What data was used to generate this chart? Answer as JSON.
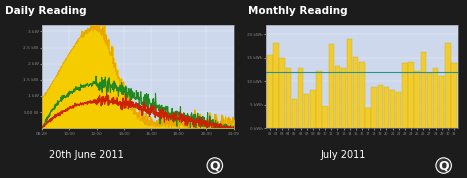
{
  "bg_color": "#1c1c1c",
  "chart_bg": "#cdd8ec",
  "title_daily": "Daily Reading",
  "title_monthly": "Monthly Reading",
  "subtitle_daily": "20th June 2011",
  "subtitle_monthly": "July 2011",
  "daily_yticks": [
    "500 W",
    "1 kW",
    "1.5 kW",
    "2 kW",
    "2.5 kW",
    "3 kW"
  ],
  "daily_ytick_vals": [
    0.5,
    1.0,
    1.5,
    2.0,
    2.5,
    3.0
  ],
  "daily_xticks": [
    "08:28",
    "10:00",
    "12:00",
    "14:00",
    "16:00",
    "18:00",
    "20:00",
    "24:09"
  ],
  "monthly_yticks": [
    "0 kWh",
    "5 kWh",
    "10 kWh",
    "15 kWh",
    "20 kWh"
  ],
  "monthly_ytick_vals": [
    0,
    5,
    10,
    15,
    20
  ],
  "monthly_xticks": [
    "01",
    "02",
    "03",
    "04",
    "05",
    "06",
    "07",
    "08",
    "09",
    "10",
    "11",
    "12",
    "13",
    "14",
    "15",
    "16",
    "17",
    "18",
    "19",
    "20",
    "21",
    "22",
    "23",
    "24",
    "25",
    "26",
    "27",
    "28",
    "29",
    "30",
    "31"
  ],
  "monthly_avg_line": 12.0,
  "bar_color_face": "#f0cc30",
  "bar_color_edge": "#c8a800",
  "monthly_bar_values": [
    15.5,
    18.2,
    15.0,
    12.8,
    6.2,
    12.8,
    7.2,
    8.2,
    12.2,
    4.8,
    18.0,
    13.2,
    12.8,
    19.0,
    15.2,
    14.2,
    4.2,
    8.8,
    9.2,
    8.8,
    8.2,
    7.8,
    13.8,
    14.2,
    12.2,
    16.2,
    11.8,
    12.8,
    11.2,
    18.2,
    13.8
  ],
  "yellow_fill": "#f5cc00",
  "yellow_edge": "#e8a800",
  "green_color": "#228822",
  "red_color": "#cc2200"
}
